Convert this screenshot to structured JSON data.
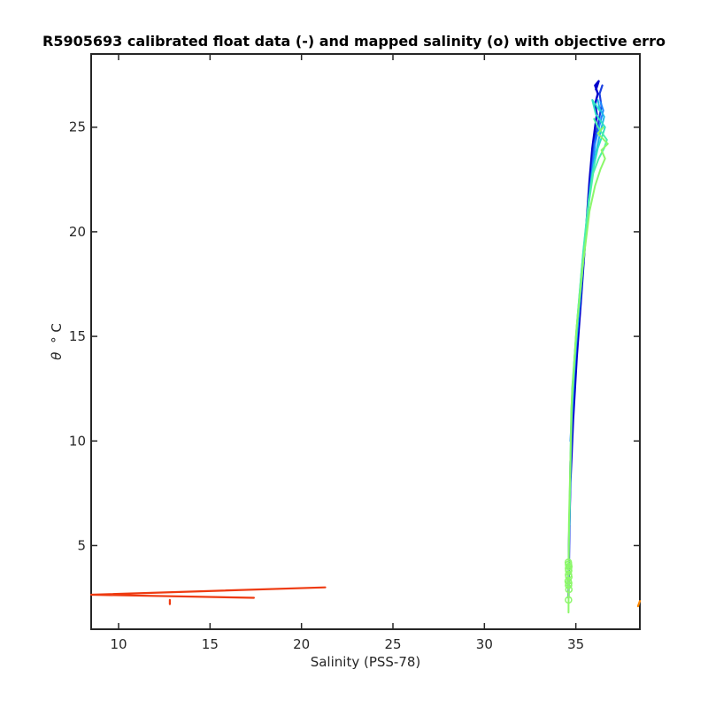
{
  "chart_data": {
    "type": "line",
    "title": "R5905693 calibrated float data (-) and mapped salinity (o) with objective erro",
    "xlabel": "Salinity (PSS-78)",
    "ylabel_symbol": "θ",
    "ylabel_unit": "° C",
    "xlim": [
      8.5,
      38.5
    ],
    "ylim": [
      1.0,
      28.5
    ],
    "x_ticks": [
      10,
      15,
      20,
      25,
      30,
      35
    ],
    "y_ticks": [
      5,
      10,
      15,
      20,
      25
    ],
    "grid": false,
    "legend": "none",
    "series": [
      {
        "color": "#0000cc",
        "width": 2.4,
        "x": [
          34.6,
          34.62,
          34.7,
          34.85,
          35.05,
          35.3,
          35.55,
          35.75,
          35.9,
          36.05,
          36.15,
          36.05,
          36.2,
          36.05,
          36.25,
          36.1
        ],
        "y": [
          2.5,
          5.0,
          8.0,
          11.0,
          14.0,
          17.0,
          20.0,
          22.5,
          24.0,
          25.0,
          25.6,
          26.1,
          26.6,
          27.0,
          27.2,
          26.8
        ]
      },
      {
        "color": "#1a3fe0",
        "width": 2.2,
        "x": [
          34.62,
          34.7,
          34.9,
          35.1,
          35.35,
          35.6,
          35.85,
          36.0,
          36.25,
          36.4,
          36.3,
          36.45
        ],
        "y": [
          3.5,
          9.0,
          13.0,
          15.5,
          18.0,
          20.5,
          22.8,
          24.2,
          25.3,
          26.0,
          26.6,
          27.0
        ]
      },
      {
        "color": "#1e88ff",
        "width": 2.0,
        "x": [
          34.7,
          34.95,
          35.2,
          35.45,
          35.7,
          35.9,
          36.05,
          36.3,
          36.5,
          36.35
        ],
        "y": [
          10.0,
          14.0,
          16.5,
          19.0,
          21.5,
          23.0,
          24.2,
          25.1,
          25.8,
          26.2
        ]
      },
      {
        "color": "#20b8e8",
        "width": 2.0,
        "x": [
          34.75,
          35.0,
          35.3,
          35.6,
          35.85,
          36.1,
          36.35,
          36.55,
          36.3,
          36.2
        ],
        "y": [
          11.0,
          14.5,
          17.5,
          20.5,
          22.5,
          23.8,
          24.8,
          25.5,
          25.9,
          26.3
        ]
      },
      {
        "color": "#32e0c4",
        "width": 2.0,
        "x": [
          34.65,
          34.8,
          35.1,
          35.4,
          35.7,
          35.95,
          36.2,
          36.45,
          36.6,
          36.1,
          35.9,
          36.3
        ],
        "y": [
          6.0,
          12.5,
          16.0,
          19.0,
          21.5,
          23.0,
          24.0,
          24.6,
          25.0,
          25.6,
          26.3,
          25.8
        ]
      },
      {
        "color": "#4cf0a8",
        "width": 2.0,
        "x": [
          34.6,
          34.75,
          35.0,
          35.35,
          35.65,
          35.95,
          36.25,
          36.55,
          36.7,
          36.2,
          36.0
        ],
        "y": [
          4.0,
          11.5,
          15.0,
          18.5,
          21.0,
          22.8,
          23.5,
          24.0,
          24.4,
          25.0,
          25.4
        ]
      },
      {
        "color": "#8cf76a",
        "width": 2.0,
        "x": [
          34.6,
          34.62,
          34.78,
          35.05,
          35.4,
          35.75,
          36.05,
          36.35,
          36.6,
          36.4,
          36.75,
          36.2,
          36.5
        ],
        "y": [
          1.8,
          6.0,
          12.0,
          15.5,
          18.5,
          21.0,
          22.2,
          23.0,
          23.5,
          23.9,
          24.2,
          24.7,
          25.0
        ]
      },
      {
        "color": "#ee3a10",
        "width": 2.2,
        "x": [
          21.3,
          8.5,
          17.4
        ],
        "y": [
          3.0,
          2.65,
          2.5
        ]
      },
      {
        "color": "#ee3a10",
        "width": 2.2,
        "x": [
          12.8,
          12.8
        ],
        "y": [
          2.2,
          2.4
        ]
      },
      {
        "color": "#ff8800",
        "width": 2.2,
        "x": [
          38.4,
          38.5
        ],
        "y": [
          2.1,
          2.35
        ]
      }
    ],
    "mapped_points": {
      "color": "#8cf76a",
      "x": [
        34.6,
        34.62,
        34.6,
        34.58,
        34.62,
        34.6,
        34.61,
        34.6,
        34.62,
        34.6,
        34.59,
        34.61
      ],
      "y": [
        2.4,
        2.9,
        3.1,
        3.3,
        3.5,
        3.6,
        3.8,
        3.9,
        4.0,
        4.1,
        4.2,
        3.2
      ]
    }
  }
}
